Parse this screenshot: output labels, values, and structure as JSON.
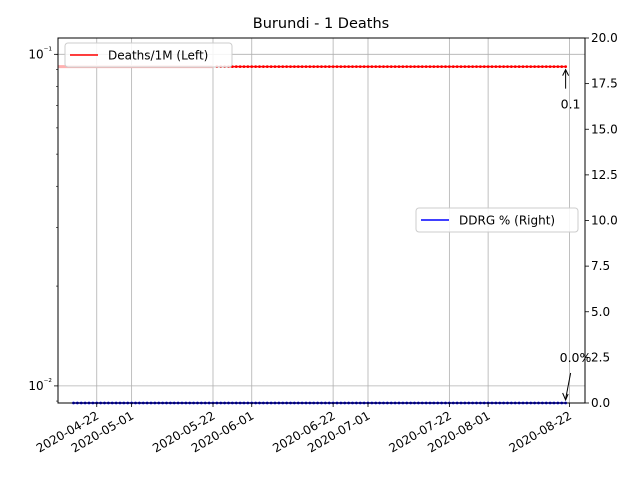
{
  "chart_data": {
    "type": "line",
    "title": "Burundi - 1 Deaths",
    "x_range": [
      "2020-04-12",
      "2020-08-26"
    ],
    "x_ticks": [
      "2020-04-22",
      "2020-05-01",
      "2020-05-22",
      "2020-06-01",
      "2020-06-22",
      "2020-07-01",
      "2020-07-22",
      "2020-08-01",
      "2020-08-22"
    ],
    "left_axis": {
      "scale": "log",
      "range": [
        0.00888,
        0.112
      ],
      "major_ticks": [
        0.01,
        0.1
      ],
      "major_tick_labels": [
        "10⁻²",
        "10⁻¹"
      ]
    },
    "right_axis": {
      "scale": "linear",
      "range": [
        0.0,
        20.0
      ],
      "ticks": [
        "0.0",
        "2.5",
        "5.0",
        "7.5",
        "10.0",
        "12.5",
        "15.0",
        "17.5",
        "20.0"
      ]
    },
    "grid": true,
    "series": [
      {
        "name": "Deaths/1M (Left)",
        "axis": "left",
        "color": "#ff0000",
        "faded_color": "#ffb0b0",
        "segments": [
          {
            "start": "2020-04-12",
            "end": "2020-05-22",
            "value": 0.0918,
            "style": "faded-line"
          },
          {
            "start": "2020-05-23",
            "end": "2020-08-21",
            "value": 0.0918,
            "style": "line-markers"
          }
        ],
        "legend_position": "upper left"
      },
      {
        "name": "DDRG % (Right)",
        "axis": "right",
        "color": "#0000ff",
        "segments": [
          {
            "start": "2020-04-16",
            "end": "2020-08-21",
            "value": 0.0,
            "style": "line-markers"
          }
        ],
        "legend_position": "center right"
      }
    ],
    "annotations": [
      {
        "text": "0.1",
        "x": "2020-08-21",
        "y_left": 0.0918,
        "axis": "left",
        "arrow": true
      },
      {
        "text": "0.0%",
        "x": "2020-08-21",
        "y_right": 0.0,
        "axis": "right",
        "arrow": true
      }
    ]
  }
}
